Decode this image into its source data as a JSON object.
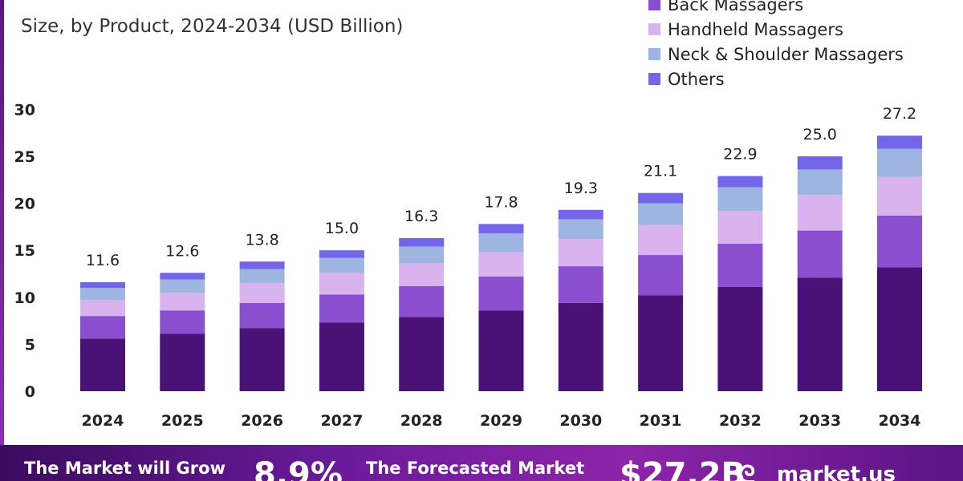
{
  "header": {
    "title_partial": "",
    "subtitle": "Size, by Product, 2024-2034 (USD Billion)"
  },
  "legend": [
    {
      "label": "Back Massagers",
      "color": "#8a4fcf"
    },
    {
      "label": "Handheld Massagers",
      "color": "#d9b3ee"
    },
    {
      "label": "Neck & Shoulder Massagers",
      "color": "#9db5e0"
    },
    {
      "label": "Others",
      "color": "#7466e8"
    }
  ],
  "chart_data": {
    "type": "bar",
    "stacked": true,
    "categories": [
      "2024",
      "2025",
      "2026",
      "2027",
      "2028",
      "2029",
      "2030",
      "2031",
      "2032",
      "2033",
      "2034"
    ],
    "series": [
      {
        "name": "",
        "color": "#4a1177",
        "values": [
          5.6,
          6.1,
          6.7,
          7.3,
          7.9,
          8.6,
          9.4,
          10.2,
          11.1,
          12.1,
          13.2
        ]
      },
      {
        "name": "Back Massagers",
        "color": "#8a4fcf",
        "values": [
          2.4,
          2.5,
          2.7,
          3.0,
          3.3,
          3.6,
          3.9,
          4.3,
          4.6,
          5.0,
          5.5
        ]
      },
      {
        "name": "Handheld Massagers",
        "color": "#d9b3ee",
        "values": [
          1.7,
          1.9,
          2.1,
          2.3,
          2.4,
          2.6,
          2.9,
          3.2,
          3.5,
          3.8,
          4.1
        ]
      },
      {
        "name": "Neck & Shoulder Massagers",
        "color": "#9db5e0",
        "values": [
          1.3,
          1.4,
          1.5,
          1.6,
          1.8,
          2.0,
          2.1,
          2.3,
          2.5,
          2.7,
          3.0
        ]
      },
      {
        "name": "Others",
        "color": "#7466e8",
        "values": [
          0.6,
          0.7,
          0.8,
          0.8,
          0.9,
          1.0,
          1.0,
          1.1,
          1.2,
          1.4,
          1.4
        ]
      }
    ],
    "totals": [
      11.6,
      12.6,
      13.8,
      15.0,
      16.3,
      17.8,
      19.3,
      21.1,
      22.9,
      25.0,
      27.2
    ],
    "total_labels": [
      "11.6",
      "12.6",
      "13.8",
      "15.0",
      "16.3",
      "17.8",
      "19.3",
      "21.1",
      "22.9",
      "25.0",
      "27.2"
    ],
    "yticks": [
      "0",
      "5",
      "10",
      "15",
      "20",
      "25",
      "30"
    ],
    "ylim": [
      0,
      30
    ],
    "grid": false,
    "legend_position": "top-right"
  },
  "banner": {
    "grow_text": "The Market will Grow",
    "cagr": "8.9%",
    "forecast_text": "The Forecasted Market",
    "value": "$27.2B",
    "logo_icon": "ᘓ",
    "brand": "market.us"
  }
}
